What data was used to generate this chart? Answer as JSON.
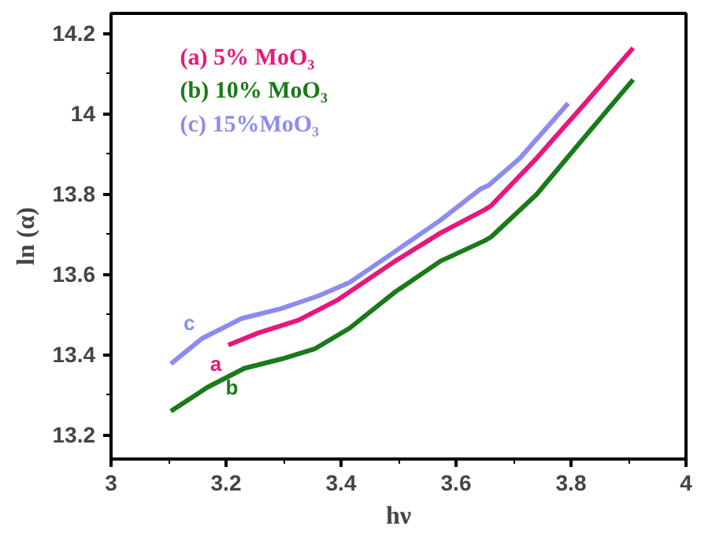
{
  "chart_data": {
    "type": "line",
    "xlabel": "hν",
    "ylabel": "ln (α)",
    "xlim": [
      3.0,
      4.0
    ],
    "ylim": [
      13.14,
      14.25
    ],
    "xticks": [
      3.0,
      3.2,
      3.4,
      3.6,
      3.8,
      4.0
    ],
    "yticks": [
      13.2,
      13.4,
      13.6,
      13.8,
      14.0,
      14.2
    ],
    "grid": false,
    "legend": "top left",
    "marker": "none",
    "line_style": "solid",
    "series": [
      {
        "name": "(a) 5% MoO₃",
        "color": "#e8177a",
        "x": [
          3.204,
          3.256,
          3.326,
          3.395,
          3.494,
          3.573,
          3.65,
          3.661,
          3.74,
          3.819,
          3.908
        ],
        "values": [
          13.424,
          13.454,
          13.486,
          13.537,
          13.633,
          13.703,
          13.761,
          13.771,
          13.889,
          14.017,
          14.164
        ]
      },
      {
        "name": "(b) 10% MoO₃",
        "color": "#1a7a1a",
        "x": [
          3.104,
          3.168,
          3.232,
          3.296,
          3.355,
          3.415,
          3.494,
          3.573,
          3.65,
          3.661,
          3.74,
          3.819,
          3.908
        ],
        "values": [
          13.259,
          13.319,
          13.366,
          13.389,
          13.415,
          13.466,
          13.556,
          13.633,
          13.684,
          13.693,
          13.799,
          13.934,
          14.085
        ]
      },
      {
        "name": "(c) 15%MoO₃",
        "color": "#8c8cf0",
        "x": [
          3.104,
          3.158,
          3.227,
          3.296,
          3.36,
          3.415,
          3.494,
          3.573,
          3.642,
          3.657,
          3.711,
          3.795
        ],
        "values": [
          13.377,
          13.44,
          13.49,
          13.515,
          13.546,
          13.58,
          13.657,
          13.735,
          13.812,
          13.822,
          13.889,
          14.026
        ]
      }
    ],
    "annotations": [
      {
        "text": "c",
        "x": 3.158,
        "y": 13.44
      },
      {
        "text": "a",
        "x": 3.204,
        "y": 13.424
      },
      {
        "text": "b",
        "x": 3.232,
        "y": 13.366
      }
    ]
  }
}
